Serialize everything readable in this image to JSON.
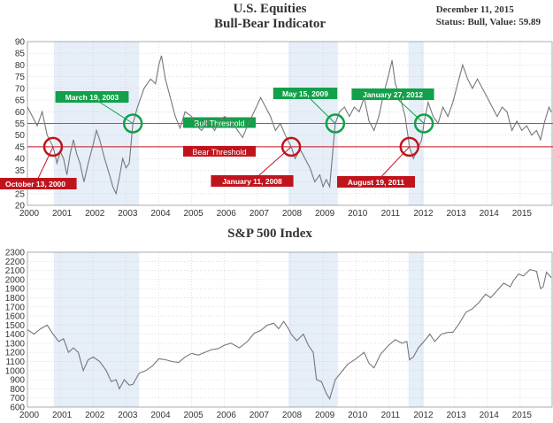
{
  "header": {
    "title_line1": "U.S. Equities",
    "title_line2": "Bull-Bear Indicator",
    "date": "December 11, 2015",
    "status": "Status: Bull, Value: 59.89"
  },
  "colors": {
    "bull": "#12a04a",
    "bear": "#c0141c",
    "shade": "#e6eef8",
    "line": "#777777",
    "grid": "#cccccc"
  },
  "chart_data": [
    {
      "type": "line",
      "title": "",
      "xlim": [
        2000,
        2016
      ],
      "ylim": [
        20,
        90
      ],
      "y_ticks": [
        20,
        25,
        30,
        35,
        40,
        45,
        50,
        55,
        60,
        65,
        70,
        75,
        80,
        85,
        90
      ],
      "x_ticks": [
        "2000",
        "2001",
        "2002",
        "2003",
        "2004",
        "2005",
        "2006",
        "2007",
        "2008",
        "2009",
        "2010",
        "2011",
        "2012",
        "2013",
        "2014",
        "2015"
      ],
      "bull_threshold": {
        "label": "Bull Threshold",
        "value": 55
      },
      "bear_threshold": {
        "label": "Bear Threshold",
        "value": 45
      },
      "bear_periods": [
        [
          2000.8,
          2003.4
        ],
        [
          2007.95,
          2009.45
        ],
        [
          2011.6,
          2012.07
        ]
      ],
      "signals": [
        {
          "type": "bear",
          "label": "October 13, 2000",
          "x": 2000.78,
          "y": 45
        },
        {
          "type": "bull",
          "label": "March 19, 2003",
          "x": 2003.21,
          "y": 55
        },
        {
          "type": "bear",
          "label": "January 11, 2008",
          "x": 2008.03,
          "y": 45
        },
        {
          "type": "bull",
          "label": "May 15, 2009",
          "x": 2009.37,
          "y": 55
        },
        {
          "type": "bear",
          "label": "August 19, 2011",
          "x": 2011.63,
          "y": 45
        },
        {
          "type": "bull",
          "label": "January 27, 2012",
          "x": 2012.07,
          "y": 55
        }
      ],
      "series": [
        {
          "points": [
            [
              2000.0,
              62
            ],
            [
              2000.15,
              58
            ],
            [
              2000.3,
              54
            ],
            [
              2000.45,
              60
            ],
            [
              2000.6,
              50
            ],
            [
              2000.78,
              45
            ],
            [
              2000.9,
              38
            ],
            [
              2001.0,
              43
            ],
            [
              2001.1,
              40
            ],
            [
              2001.2,
              33
            ],
            [
              2001.3,
              42
            ],
            [
              2001.4,
              48
            ],
            [
              2001.5,
              42
            ],
            [
              2001.6,
              38
            ],
            [
              2001.72,
              30
            ],
            [
              2001.85,
              38
            ],
            [
              2002.0,
              46
            ],
            [
              2002.1,
              52
            ],
            [
              2002.2,
              48
            ],
            [
              2002.35,
              40
            ],
            [
              2002.5,
              33
            ],
            [
              2002.6,
              28
            ],
            [
              2002.7,
              25
            ],
            [
              2002.8,
              32
            ],
            [
              2002.9,
              40
            ],
            [
              2003.0,
              36
            ],
            [
              2003.1,
              38
            ],
            [
              2003.21,
              55
            ],
            [
              2003.35,
              62
            ],
            [
              2003.55,
              70
            ],
            [
              2003.75,
              74
            ],
            [
              2003.9,
              72
            ],
            [
              2004.0,
              80
            ],
            [
              2004.08,
              84
            ],
            [
              2004.2,
              74
            ],
            [
              2004.35,
              66
            ],
            [
              2004.5,
              58
            ],
            [
              2004.65,
              53
            ],
            [
              2004.8,
              60
            ],
            [
              2005.0,
              58
            ],
            [
              2005.15,
              54
            ],
            [
              2005.3,
              52
            ],
            [
              2005.5,
              56
            ],
            [
              2005.7,
              52
            ],
            [
              2005.85,
              56
            ],
            [
              2006.0,
              58
            ],
            [
              2006.2,
              56
            ],
            [
              2006.4,
              52
            ],
            [
              2006.55,
              49
            ],
            [
              2006.7,
              54
            ],
            [
              2006.9,
              60
            ],
            [
              2007.1,
              66
            ],
            [
              2007.25,
              62
            ],
            [
              2007.4,
              58
            ],
            [
              2007.55,
              52
            ],
            [
              2007.7,
              55
            ],
            [
              2007.85,
              50
            ],
            [
              2008.03,
              45
            ],
            [
              2008.15,
              40
            ],
            [
              2008.3,
              44
            ],
            [
              2008.45,
              40
            ],
            [
              2008.6,
              36
            ],
            [
              2008.75,
              30
            ],
            [
              2008.9,
              33
            ],
            [
              2009.0,
              28
            ],
            [
              2009.1,
              31
            ],
            [
              2009.2,
              28
            ],
            [
              2009.37,
              55
            ],
            [
              2009.5,
              60
            ],
            [
              2009.65,
              62
            ],
            [
              2009.8,
              58
            ],
            [
              2009.95,
              62
            ],
            [
              2010.1,
              60
            ],
            [
              2010.25,
              66
            ],
            [
              2010.4,
              56
            ],
            [
              2010.55,
              52
            ],
            [
              2010.7,
              58
            ],
            [
              2010.85,
              68
            ],
            [
              2011.0,
              76
            ],
            [
              2011.1,
              82
            ],
            [
              2011.2,
              72
            ],
            [
              2011.35,
              66
            ],
            [
              2011.5,
              58
            ],
            [
              2011.63,
              45
            ],
            [
              2011.75,
              40
            ],
            [
              2011.88,
              44
            ],
            [
              2012.0,
              48
            ],
            [
              2012.07,
              55
            ],
            [
              2012.2,
              64
            ],
            [
              2012.35,
              58
            ],
            [
              2012.5,
              55
            ],
            [
              2012.65,
              62
            ],
            [
              2012.8,
              58
            ],
            [
              2012.95,
              64
            ],
            [
              2013.1,
              72
            ],
            [
              2013.25,
              80
            ],
            [
              2013.4,
              74
            ],
            [
              2013.55,
              70
            ],
            [
              2013.7,
              74
            ],
            [
              2013.85,
              70
            ],
            [
              2014.0,
              66
            ],
            [
              2014.15,
              62
            ],
            [
              2014.3,
              58
            ],
            [
              2014.45,
              62
            ],
            [
              2014.6,
              60
            ],
            [
              2014.75,
              52
            ],
            [
              2014.9,
              56
            ],
            [
              2015.05,
              52
            ],
            [
              2015.2,
              54
            ],
            [
              2015.35,
              50
            ],
            [
              2015.5,
              52
            ],
            [
              2015.62,
              48
            ],
            [
              2015.75,
              56
            ],
            [
              2015.88,
              62
            ],
            [
              2015.95,
              59.89
            ]
          ]
        }
      ]
    },
    {
      "type": "line",
      "title": "S&P 500 Index",
      "xlim": [
        2000,
        2016
      ],
      "ylim": [
        600,
        2300
      ],
      "y_ticks": [
        600,
        700,
        800,
        900,
        1000,
        1100,
        1200,
        1300,
        1400,
        1500,
        1600,
        1700,
        1800,
        1900,
        2000,
        2100,
        2200,
        2300
      ],
      "x_ticks": [
        "2000",
        "2001",
        "2002",
        "2003",
        "2004",
        "2005",
        "2006",
        "2007",
        "2008",
        "2009",
        "2010",
        "2011",
        "2012",
        "2013",
        "2014",
        "2015"
      ],
      "bear_periods": [
        [
          2000.8,
          2003.4
        ],
        [
          2007.95,
          2009.45
        ],
        [
          2011.6,
          2012.07
        ]
      ],
      "series": [
        {
          "points": [
            [
              2000.0,
              1450
            ],
            [
              2000.2,
              1400
            ],
            [
              2000.4,
              1460
            ],
            [
              2000.6,
              1500
            ],
            [
              2000.78,
              1400
            ],
            [
              2000.95,
              1320
            ],
            [
              2001.1,
              1350
            ],
            [
              2001.25,
              1200
            ],
            [
              2001.4,
              1250
            ],
            [
              2001.55,
              1200
            ],
            [
              2001.7,
              1000
            ],
            [
              2001.85,
              1120
            ],
            [
              2002.0,
              1150
            ],
            [
              2002.2,
              1100
            ],
            [
              2002.4,
              1000
            ],
            [
              2002.55,
              880
            ],
            [
              2002.7,
              900
            ],
            [
              2002.8,
              800
            ],
            [
              2002.95,
              900
            ],
            [
              2003.1,
              840
            ],
            [
              2003.21,
              850
            ],
            [
              2003.4,
              970
            ],
            [
              2003.6,
              1000
            ],
            [
              2003.8,
              1050
            ],
            [
              2004.0,
              1130
            ],
            [
              2004.2,
              1120
            ],
            [
              2004.4,
              1100
            ],
            [
              2004.6,
              1090
            ],
            [
              2004.8,
              1150
            ],
            [
              2005.0,
              1190
            ],
            [
              2005.2,
              1170
            ],
            [
              2005.4,
              1200
            ],
            [
              2005.6,
              1230
            ],
            [
              2005.8,
              1240
            ],
            [
              2006.0,
              1280
            ],
            [
              2006.2,
              1300
            ],
            [
              2006.45,
              1250
            ],
            [
              2006.7,
              1320
            ],
            [
              2006.9,
              1410
            ],
            [
              2007.1,
              1440
            ],
            [
              2007.3,
              1500
            ],
            [
              2007.5,
              1520
            ],
            [
              2007.65,
              1460
            ],
            [
              2007.8,
              1540
            ],
            [
              2007.95,
              1460
            ],
            [
              2008.03,
              1400
            ],
            [
              2008.2,
              1330
            ],
            [
              2008.4,
              1400
            ],
            [
              2008.55,
              1280
            ],
            [
              2008.7,
              1200
            ],
            [
              2008.8,
              900
            ],
            [
              2008.95,
              880
            ],
            [
              2009.1,
              750
            ],
            [
              2009.2,
              690
            ],
            [
              2009.37,
              900
            ],
            [
              2009.55,
              980
            ],
            [
              2009.75,
              1070
            ],
            [
              2010.0,
              1130
            ],
            [
              2010.25,
              1200
            ],
            [
              2010.4,
              1080
            ],
            [
              2010.55,
              1030
            ],
            [
              2010.75,
              1180
            ],
            [
              2011.0,
              1280
            ],
            [
              2011.2,
              1340
            ],
            [
              2011.4,
              1300
            ],
            [
              2011.55,
              1320
            ],
            [
              2011.63,
              1120
            ],
            [
              2011.75,
              1150
            ],
            [
              2011.9,
              1250
            ],
            [
              2012.07,
              1320
            ],
            [
              2012.25,
              1400
            ],
            [
              2012.4,
              1320
            ],
            [
              2012.6,
              1400
            ],
            [
              2012.8,
              1420
            ],
            [
              2012.95,
              1420
            ],
            [
              2013.15,
              1520
            ],
            [
              2013.35,
              1640
            ],
            [
              2013.55,
              1680
            ],
            [
              2013.75,
              1750
            ],
            [
              2013.95,
              1840
            ],
            [
              2014.1,
              1800
            ],
            [
              2014.3,
              1880
            ],
            [
              2014.5,
              1960
            ],
            [
              2014.7,
              1920
            ],
            [
              2014.8,
              1990
            ],
            [
              2014.95,
              2060
            ],
            [
              2015.1,
              2040
            ],
            [
              2015.3,
              2110
            ],
            [
              2015.5,
              2090
            ],
            [
              2015.62,
              1900
            ],
            [
              2015.7,
              1920
            ],
            [
              2015.8,
              2080
            ],
            [
              2015.95,
              2020
            ]
          ]
        }
      ]
    }
  ]
}
